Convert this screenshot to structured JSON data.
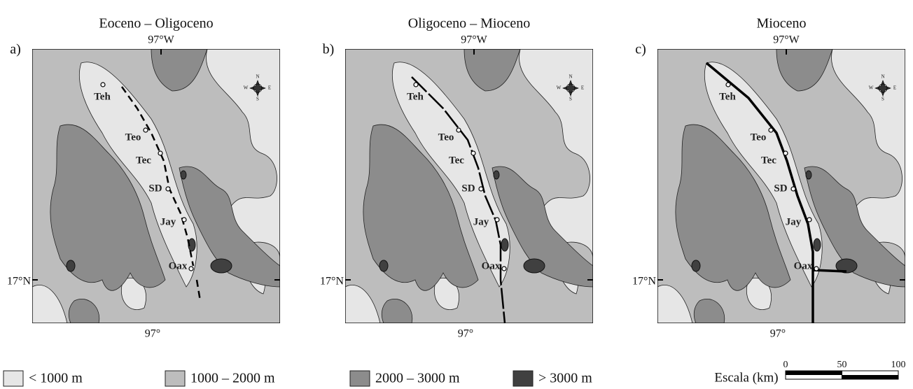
{
  "panels": [
    {
      "title": "Eoceno – Oligoceno",
      "label": "a)",
      "lon_top": "97°W",
      "lon_bottom": "97°",
      "lat": "17°N",
      "cities": [
        "Teh",
        "Teo",
        "Tec",
        "SD",
        "Jay",
        "Oax"
      ],
      "compass": [
        "N",
        "S",
        "E",
        "W"
      ]
    },
    {
      "title": "Oligoceno – Mioceno",
      "label": "b)",
      "lon_top": "97°W",
      "lon_bottom": "97°",
      "lat": "17°N",
      "cities": [
        "Teh",
        "Teo",
        "Tec",
        "SD",
        "Jay",
        "Oax"
      ],
      "compass": [
        "N",
        "S",
        "E",
        "W"
      ]
    },
    {
      "title": "Mioceno",
      "label": "c)",
      "lon_top": "97°W",
      "lon_bottom": "97°",
      "lat": "17°N",
      "cities": [
        "Teh",
        "Teo",
        "Tec",
        "SD",
        "Jay",
        "Oax"
      ],
      "compass": [
        "N",
        "S",
        "E",
        "W"
      ]
    }
  ],
  "legend": [
    {
      "label": "< 1000 m",
      "color": "#e6e6e6"
    },
    {
      "label": "1000 – 2000 m",
      "color": "#bdbdbd"
    },
    {
      "label": "2000 – 3000 m",
      "color": "#8c8c8c"
    },
    {
      "label": "> 3000 m",
      "color": "#404040"
    }
  ],
  "scale": {
    "label": "Escala (km)",
    "ticks": [
      0,
      50,
      100
    ]
  }
}
